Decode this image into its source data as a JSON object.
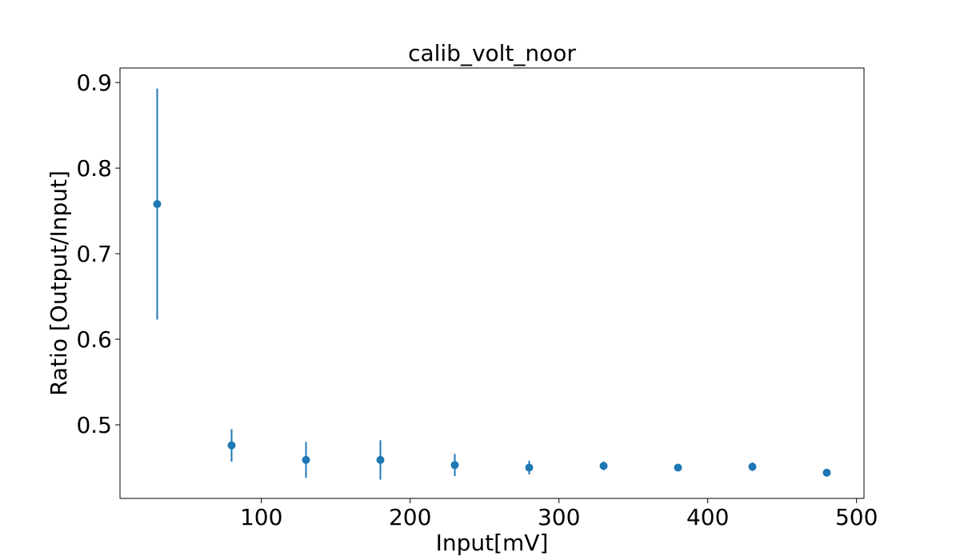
{
  "chart_data": {
    "type": "scatter",
    "title": "calib_volt_noor",
    "xlabel": "Input[mV]",
    "ylabel": "Ratio [Output/Input]",
    "xlim": [
      5,
      505
    ],
    "ylim": [
      0.414,
      0.917
    ],
    "xticks": [
      100,
      200,
      300,
      400,
      500
    ],
    "xtick_labels": [
      "100",
      "200",
      "300",
      "400",
      "500"
    ],
    "yticks": [
      0.5,
      0.6,
      0.7,
      0.8,
      0.9
    ],
    "ytick_labels": [
      "0.5",
      "0.6",
      "0.7",
      "0.8",
      "0.9"
    ],
    "grid": false,
    "series": [
      {
        "color": "#1f77b4",
        "points": [
          {
            "x": 30,
            "y": 0.758,
            "yerr": 0.135
          },
          {
            "x": 80,
            "y": 0.476,
            "yerr": 0.019
          },
          {
            "x": 130,
            "y": 0.459,
            "yerr": 0.021
          },
          {
            "x": 180,
            "y": 0.459,
            "yerr": 0.023
          },
          {
            "x": 230,
            "y": 0.453,
            "yerr": 0.013
          },
          {
            "x": 280,
            "y": 0.45,
            "yerr": 0.008
          },
          {
            "x": 330,
            "y": 0.452,
            "yerr": 0.005
          },
          {
            "x": 380,
            "y": 0.45,
            "yerr": 0.002
          },
          {
            "x": 430,
            "y": 0.451,
            "yerr": 0.005
          },
          {
            "x": 480,
            "y": 0.444,
            "yerr": 0.002
          }
        ]
      }
    ]
  }
}
